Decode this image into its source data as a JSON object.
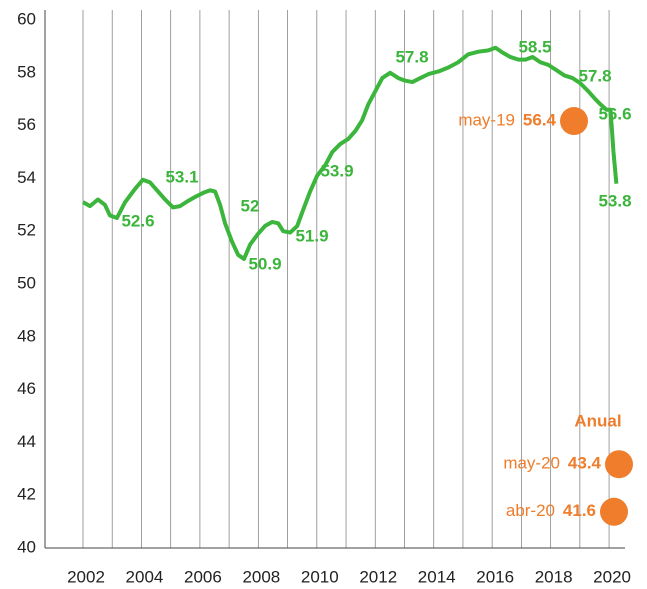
{
  "chart_data": {
    "type": "line",
    "x": [
      2002.0,
      2002.24,
      2002.51,
      2002.75,
      2002.92,
      2003.16,
      2003.44,
      2003.78,
      2004.05,
      2004.29,
      2004.57,
      2004.81,
      2005.08,
      2005.32,
      2005.6,
      2005.84,
      2006.11,
      2006.35,
      2006.52,
      2006.69,
      2006.86,
      2007.1,
      2007.31,
      2007.51,
      2007.72,
      2007.99,
      2008.23,
      2008.47,
      2008.68,
      2008.85,
      2009.09,
      2009.33,
      2009.53,
      2009.77,
      2010.01,
      2010.29,
      2010.53,
      2010.8,
      2011.08,
      2011.32,
      2011.55,
      2011.76,
      2012.0,
      2012.24,
      2012.51,
      2012.79,
      2013.03,
      2013.27,
      2013.54,
      2013.82,
      2014.16,
      2014.5,
      2014.84,
      2015.18,
      2015.53,
      2015.87,
      2016.11,
      2016.38,
      2016.62,
      2016.9,
      2017.14,
      2017.38,
      2017.65,
      2017.92,
      2018.2,
      2018.47,
      2018.75,
      2019.02,
      2019.29,
      2019.53,
      2019.71,
      2019.91,
      2020.05,
      2020.15,
      2020.25
    ],
    "series": [
      {
        "color": "#3bb53b",
        "values": [
          53.1,
          52.95,
          53.2,
          53.0,
          52.6,
          52.5,
          53.1,
          53.6,
          53.95,
          53.85,
          53.5,
          53.2,
          52.9,
          52.95,
          53.15,
          53.3,
          53.45,
          53.55,
          53.5,
          53.0,
          52.3,
          51.6,
          51.1,
          50.95,
          51.5,
          51.9,
          52.2,
          52.35,
          52.3,
          52.0,
          51.95,
          52.2,
          52.8,
          53.5,
          54.1,
          54.5,
          55.0,
          55.3,
          55.5,
          55.8,
          56.2,
          56.8,
          57.3,
          57.8,
          58.0,
          57.8,
          57.7,
          57.65,
          57.8,
          57.95,
          58.05,
          58.2,
          58.4,
          58.7,
          58.8,
          58.85,
          58.95,
          58.75,
          58.6,
          58.5,
          58.5,
          58.6,
          58.4,
          58.3,
          58.1,
          57.9,
          57.8,
          57.6,
          57.3,
          57.0,
          56.8,
          56.6,
          56.6,
          55.0,
          53.8
        ]
      }
    ],
    "annotations": [
      52.6,
      53.1,
      52.0,
      50.9,
      51.9,
      53.9,
      57.8,
      58.5,
      57.8,
      56.6,
      53.8
    ],
    "points_title": "Anual",
    "points": [
      {
        "label": "may-19",
        "value": 56.4
      },
      {
        "label": "may-20",
        "value": 43.4
      },
      {
        "label": "abr-20",
        "value": 41.6
      }
    ],
    "points_color": "#ef7d2b",
    "xlim": [
      2000.7,
      2021.4
    ],
    "ylim": [
      40,
      60
    ],
    "xticks": [
      2002,
      2004,
      2006,
      2008,
      2010,
      2012,
      2014,
      2016,
      2018,
      2020
    ],
    "xgrid": [
      2002,
      2003,
      2004,
      2005,
      2006,
      2007,
      2008,
      2009,
      2010,
      2011,
      2012,
      2013,
      2014,
      2015,
      2016,
      2017,
      2018,
      2019,
      2020
    ],
    "yticks": [
      40,
      42,
      44,
      46,
      48,
      50,
      52,
      54,
      56,
      58,
      60
    ]
  }
}
